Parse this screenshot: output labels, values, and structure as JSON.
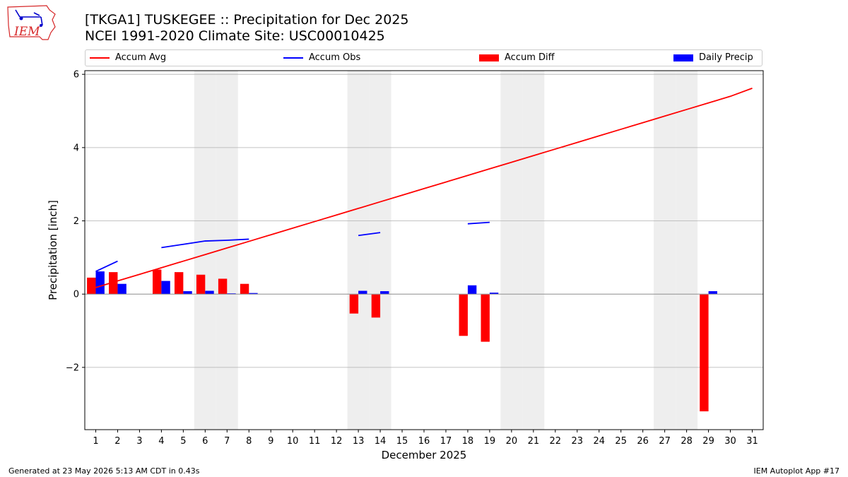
{
  "header": {
    "title_line1": "[TKGA1] TUSKEGEE :: Precipitation for Dec 2025",
    "title_line2": "NCEI 1991-2020 Climate Site: USC00010425"
  },
  "logo": {
    "text": "IEM",
    "icon": "iem-iowa-logo-icon",
    "color": "#d62728"
  },
  "footer": {
    "left": "Generated at 23 May 2026 5:13 AM CDT in 0.43s",
    "right": "IEM Autoplot App #17"
  },
  "colors": {
    "avg": "#ff0000",
    "obs": "#0000ff",
    "diff": "#ff0000",
    "daily": "#0000ff",
    "weekend": "#eeeeee",
    "grid": "#b0b0b0"
  },
  "chart_data": {
    "type": "bar",
    "xlabel": "December 2025",
    "ylabel": "Precipitation [inch]",
    "xlim": [
      0.5,
      31.5
    ],
    "ylim": [
      -3.7,
      6.1
    ],
    "yticks": [
      -2,
      0,
      2,
      4,
      6
    ],
    "ytick_labels": [
      "−2",
      "0",
      "2",
      "4",
      "6"
    ],
    "days": [
      1,
      2,
      3,
      4,
      5,
      6,
      7,
      8,
      9,
      10,
      11,
      12,
      13,
      14,
      15,
      16,
      17,
      18,
      19,
      20,
      21,
      22,
      23,
      24,
      25,
      26,
      27,
      28,
      29,
      30,
      31
    ],
    "shaded_days": [
      6,
      7,
      13,
      14,
      20,
      21,
      27,
      28
    ],
    "grid": true,
    "legend_position": "top",
    "legend": [
      "Accum Avg",
      "Accum Obs",
      "Accum Diff",
      "Daily Precip"
    ],
    "series": [
      {
        "name": "Accum Avg",
        "kind": "line",
        "values": [
          0.18,
          0.36,
          0.54,
          0.72,
          0.9,
          1.08,
          1.26,
          1.44,
          1.62,
          1.8,
          1.98,
          2.16,
          2.34,
          2.52,
          2.7,
          2.88,
          3.06,
          3.24,
          3.42,
          3.6,
          3.78,
          3.96,
          4.14,
          4.32,
          4.5,
          4.68,
          4.86,
          5.04,
          5.22,
          5.4,
          5.62
        ]
      },
      {
        "name": "Accum Obs",
        "kind": "line",
        "values": [
          0.62,
          0.9,
          null,
          1.27,
          1.36,
          1.45,
          1.47,
          1.5,
          null,
          null,
          null,
          null,
          1.6,
          1.68,
          null,
          null,
          null,
          1.92,
          1.96,
          null,
          null,
          null,
          null,
          null,
          null,
          null,
          null,
          null,
          null,
          null,
          null
        ]
      },
      {
        "name": "Accum Diff",
        "kind": "bar",
        "values": [
          0.45,
          0.6,
          0,
          0.67,
          0.6,
          0.53,
          0.42,
          0.28,
          0,
          0,
          0,
          0,
          -0.53,
          -0.64,
          0,
          0,
          0,
          -1.14,
          -1.3,
          0,
          0,
          0,
          0,
          0,
          0,
          0,
          0,
          0,
          -3.2,
          0,
          0
        ]
      },
      {
        "name": "Daily Precip",
        "kind": "bar",
        "values": [
          0.62,
          0.28,
          0,
          0.36,
          0.08,
          0.09,
          0.02,
          0.03,
          0,
          0,
          0,
          0,
          0.09,
          0.08,
          0,
          0,
          0,
          0.24,
          0.04,
          0,
          0,
          0,
          0,
          0,
          0,
          0,
          0,
          0,
          0.08,
          0,
          0
        ]
      }
    ]
  }
}
